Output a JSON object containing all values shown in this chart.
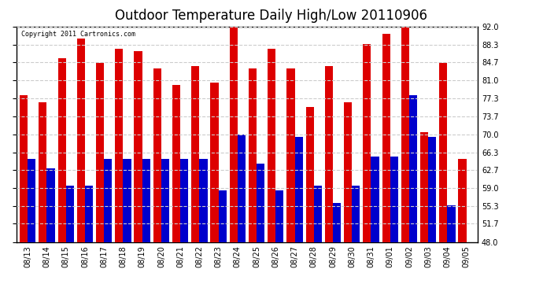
{
  "title": "Outdoor Temperature Daily High/Low 20110906",
  "copyright": "Copyright 2011 Cartronics.com",
  "dates": [
    "08/13",
    "08/14",
    "08/15",
    "08/16",
    "08/17",
    "08/18",
    "08/19",
    "08/20",
    "08/21",
    "08/22",
    "08/23",
    "08/24",
    "08/25",
    "08/26",
    "08/27",
    "08/28",
    "08/29",
    "08/30",
    "08/31",
    "09/01",
    "09/02",
    "09/03",
    "09/04",
    "09/05"
  ],
  "highs": [
    78.0,
    76.5,
    85.5,
    89.5,
    84.5,
    87.5,
    87.0,
    83.5,
    80.0,
    84.0,
    80.5,
    92.0,
    83.5,
    87.5,
    83.5,
    75.5,
    84.0,
    76.5,
    88.5,
    90.5,
    93.0,
    70.5,
    84.5,
    65.0
  ],
  "lows": [
    65.0,
    63.0,
    59.5,
    59.5,
    65.0,
    65.0,
    65.0,
    65.0,
    65.0,
    65.0,
    58.5,
    70.0,
    64.0,
    58.5,
    69.5,
    59.5,
    56.0,
    59.5,
    65.5,
    65.5,
    78.0,
    69.5,
    55.5,
    48.0
  ],
  "high_color": "#dd0000",
  "low_color": "#0000cc",
  "bg_color": "#ffffff",
  "plot_bg_color": "#ffffff",
  "grid_color": "#cccccc",
  "border_color": "#000000",
  "ymin": 48.0,
  "ymax": 92.0,
  "yticks": [
    48.0,
    51.7,
    55.3,
    59.0,
    62.7,
    66.3,
    70.0,
    73.7,
    77.3,
    81.0,
    84.7,
    88.3,
    92.0
  ],
  "bar_width": 0.42,
  "title_fontsize": 12,
  "tick_fontsize": 7,
  "copyright_fontsize": 6
}
